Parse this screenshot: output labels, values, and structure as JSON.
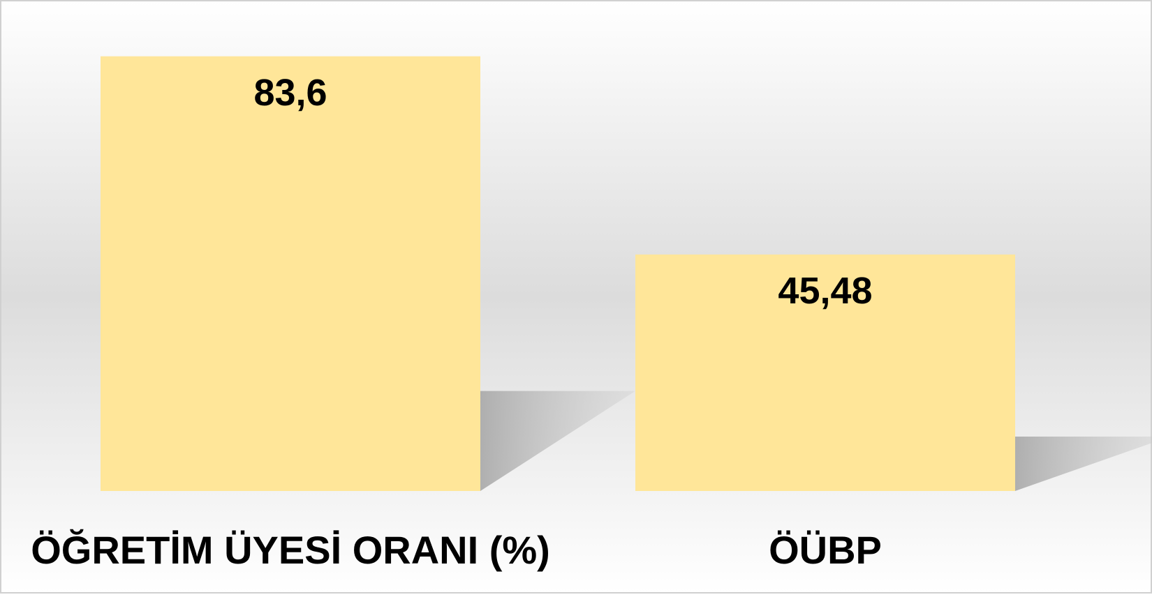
{
  "chart_data": {
    "type": "bar",
    "categories": [
      "ÖĞRETİM ÜYESİ ORANI (%)",
      "ÖÜBP"
    ],
    "values": [
      83.6,
      45.48
    ],
    "value_labels": [
      "83,6",
      "45,48"
    ],
    "color": "#ffe699",
    "ylim": [
      0,
      90
    ],
    "grid": false
  }
}
